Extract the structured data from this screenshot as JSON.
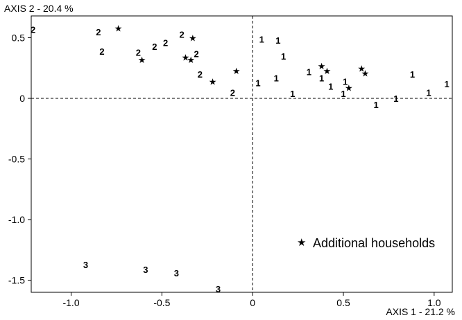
{
  "chart_data": {
    "type": "scatter",
    "y_axis_title": "AXIS 2  -  20.4 %",
    "x_axis_title": "AXIS 1  -  21.2 %",
    "xlim": [
      -1.22,
      1.1
    ],
    "ylim": [
      -1.6,
      0.68
    ],
    "x_ticks": [
      {
        "value": -1.0,
        "label": "-1.0"
      },
      {
        "value": -0.5,
        "label": "-0.5"
      },
      {
        "value": 0,
        "label": "0"
      },
      {
        "value": 0.5,
        "label": "0.5"
      },
      {
        "value": 1.0,
        "label": "1.0"
      }
    ],
    "y_ticks": [
      {
        "value": 0.5,
        "label": "0.5"
      },
      {
        "value": 0,
        "label": "0"
      },
      {
        "value": -0.5,
        "label": "-0.5"
      },
      {
        "value": -1.0,
        "label": "-1.0"
      },
      {
        "value": -1.5,
        "label": "-1.5"
      }
    ],
    "zero_lines": "dashed",
    "grid": false,
    "legend": {
      "symbol": "★",
      "label": "Additional households",
      "position": "bottom-right"
    },
    "series": [
      {
        "label": "2",
        "points": [
          {
            "x": -1.21,
            "y": 0.57
          },
          {
            "x": -0.85,
            "y": 0.55
          },
          {
            "x": -0.83,
            "y": 0.39
          },
          {
            "x": -0.63,
            "y": 0.38
          },
          {
            "x": -0.54,
            "y": 0.43
          },
          {
            "x": -0.48,
            "y": 0.46
          },
          {
            "x": -0.39,
            "y": 0.53
          },
          {
            "x": -0.31,
            "y": 0.37
          },
          {
            "x": -0.29,
            "y": 0.2
          },
          {
            "x": -0.11,
            "y": 0.05
          }
        ]
      },
      {
        "label": "1",
        "points": [
          {
            "x": 0.05,
            "y": 0.49
          },
          {
            "x": 0.14,
            "y": 0.48
          },
          {
            "x": 0.17,
            "y": 0.35
          },
          {
            "x": 0.03,
            "y": 0.13
          },
          {
            "x": 0.13,
            "y": 0.17
          },
          {
            "x": 0.22,
            "y": 0.04
          },
          {
            "x": 0.31,
            "y": 0.22
          },
          {
            "x": 0.38,
            "y": 0.17
          },
          {
            "x": 0.43,
            "y": 0.1
          },
          {
            "x": 0.5,
            "y": 0.04
          },
          {
            "x": 0.51,
            "y": 0.14
          },
          {
            "x": 0.68,
            "y": -0.05
          },
          {
            "x": 0.79,
            "y": 0.0
          },
          {
            "x": 0.88,
            "y": 0.2
          },
          {
            "x": 0.97,
            "y": 0.05
          },
          {
            "x": 1.07,
            "y": 0.12
          }
        ]
      },
      {
        "label": "3",
        "points": [
          {
            "x": -0.92,
            "y": -1.37
          },
          {
            "x": -0.59,
            "y": -1.41
          },
          {
            "x": -0.42,
            "y": -1.44
          },
          {
            "x": -0.19,
            "y": -1.57
          }
        ]
      },
      {
        "label": "★",
        "points": [
          {
            "x": -0.74,
            "y": 0.58
          },
          {
            "x": -0.61,
            "y": 0.32
          },
          {
            "x": -0.37,
            "y": 0.34
          },
          {
            "x": -0.34,
            "y": 0.32
          },
          {
            "x": -0.33,
            "y": 0.5
          },
          {
            "x": -0.22,
            "y": 0.14
          },
          {
            "x": -0.09,
            "y": 0.23
          },
          {
            "x": 0.38,
            "y": 0.27
          },
          {
            "x": 0.41,
            "y": 0.23
          },
          {
            "x": 0.53,
            "y": 0.09
          },
          {
            "x": 0.6,
            "y": 0.25
          },
          {
            "x": 0.62,
            "y": 0.21
          }
        ]
      }
    ]
  }
}
